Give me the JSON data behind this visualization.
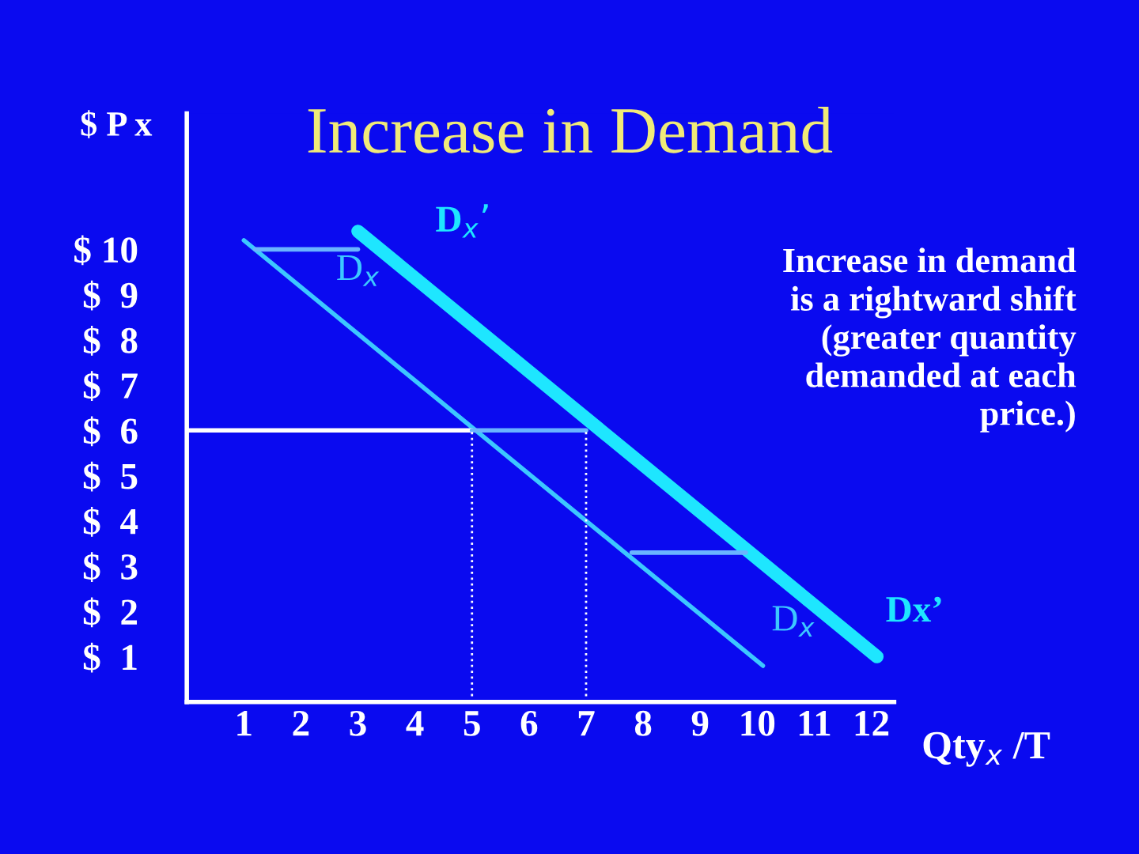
{
  "chart_data": {
    "type": "line",
    "title": "Increase in Demand",
    "xlabel": "Qty$_{x}$ /T",
    "ylabel": "$ P x",
    "series": [
      {
        "name": "D$_{x}$",
        "color": "#3cc8ff",
        "x": [
          1,
          10.1
        ],
        "values": [
          10.2,
          0.8
        ]
      },
      {
        "name": "Dx’",
        "color": "#1ee6ff",
        "x": [
          3,
          12.1
        ],
        "values": [
          10.4,
          1.0
        ]
      },
      {
        "color": "#ffffff",
        "x": [
          0,
          5
        ],
        "values": [
          6,
          6
        ]
      },
      {
        "color": "#6ab4ff",
        "x": [
          5,
          7
        ],
        "values": [
          6,
          6
        ]
      },
      {
        "color": "#6ab4ff",
        "x": [
          1.2,
          3.0
        ],
        "values": [
          10.0,
          10.0
        ]
      },
      {
        "color": "#6ab4ff",
        "x": [
          7.8,
          9.8
        ],
        "values": [
          3.3,
          3.3
        ]
      },
      {
        "color": "#ffffff",
        "x": [
          5,
          5
        ],
        "values": [
          0,
          6
        ],
        "line_style": "dotted"
      },
      {
        "color": "#ffffff",
        "x": [
          7,
          7
        ],
        "values": [
          0,
          6
        ],
        "line_style": "dotted"
      }
    ],
    "xlim": [
      0,
      12.4
    ],
    "ylim": [
      0,
      13
    ],
    "xticks": [
      1,
      2,
      3,
      4,
      5,
      6,
      7,
      8,
      9,
      10,
      11,
      12
    ],
    "yticks": [
      {
        "value": 1,
        "label": "$  1"
      },
      {
        "value": 2,
        "label": "$  2"
      },
      {
        "value": 3,
        "label": "$  3"
      },
      {
        "value": 4,
        "label": "$  4"
      },
      {
        "value": 5,
        "label": "$  5"
      },
      {
        "value": 6,
        "label": "$  6"
      },
      {
        "value": 7,
        "label": "$  7"
      },
      {
        "value": 8,
        "label": "$  8"
      },
      {
        "value": 9,
        "label": "$  9"
      },
      {
        "value": 10,
        "label": "$ 10"
      }
    ],
    "annotations": [
      "D$_{x}$",
      "D$_{x}$’",
      "Increase in demand\nis a rightward shift\n(greater quantity\ndemanded at each\nprice.)"
    ],
    "grid": false,
    "legend": false
  }
}
